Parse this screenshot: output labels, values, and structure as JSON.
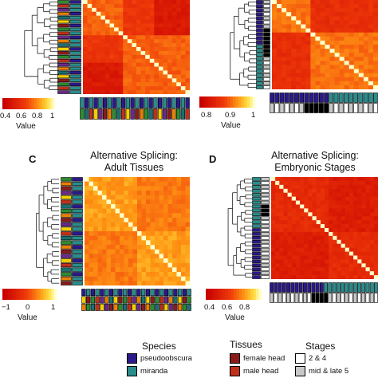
{
  "panels": {
    "a": {
      "scale_ticks": [
        "0.4",
        "0.6",
        "0.8",
        "1"
      ],
      "value_label": "Value"
    },
    "b": {
      "scale_ticks": [
        "0.8",
        "0.9",
        "1"
      ],
      "value_label": "Value"
    },
    "c": {
      "letter": "C",
      "title_line1": "Alternative Splicing:",
      "title_line2": "Adult Tissues",
      "scale_ticks": [
        "−1",
        "0",
        "1"
      ],
      "value_label": "Value"
    },
    "d": {
      "letter": "D",
      "title_line1": "Alternative Splicing:",
      "title_line2": "Embryonic Stages",
      "scale_ticks": [
        "0.4",
        "0.6",
        "0.8"
      ],
      "value_label": "Value"
    }
  },
  "legend": {
    "species_title": "Species",
    "species": [
      {
        "label": "pseudoobscura",
        "color": "#2a1a8a"
      },
      {
        "label": "miranda",
        "color": "#2a8c8c"
      }
    ],
    "tissues_title": "Tissues",
    "tissues": [
      {
        "label": "female head",
        "color": "#8b1a1a"
      },
      {
        "label": "male head",
        "color": "#c0301a"
      }
    ],
    "stages_title": "Stages",
    "stages": [
      {
        "label": "2 & 4",
        "color": "#ffffff"
      },
      {
        "label": "mid & late 5",
        "color": "#c8c8c8"
      }
    ]
  },
  "colors": {
    "heat_low": "#cc0000",
    "heat_mid": "#ff7f00",
    "heat_high": "#ffff99",
    "species_a": "#2a1a8a",
    "species_b": "#2a8c8c",
    "tissue_green": "#2e8b2e"
  }
}
